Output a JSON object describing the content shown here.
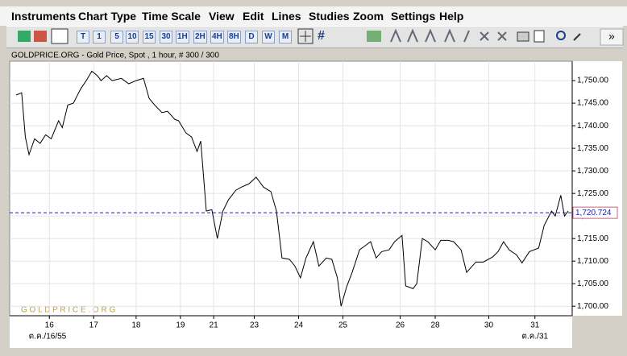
{
  "menu": [
    "Instruments",
    "Chart Type",
    "Time Scale",
    "View",
    "Edit",
    "Lines",
    "Studies",
    "Zoom",
    "Settings",
    "Help"
  ],
  "toolbar": {
    "periods": [
      "T",
      "1",
      "5",
      "10",
      "15",
      "30",
      "1H",
      "2H",
      "4H",
      "8H",
      "D",
      "W",
      "M"
    ]
  },
  "chart_data": {
    "type": "line",
    "title": "GOLDPRICE.ORG - Gold Price, Spot , 1 hour, # 300 / 300",
    "watermark": "G O L D P R I C E . O R G",
    "color": "#000000",
    "x": [
      0,
      3,
      5,
      7,
      10,
      13,
      16,
      19,
      23,
      25,
      28,
      31,
      35,
      38,
      41,
      44,
      46,
      49,
      52,
      57,
      61,
      65,
      69,
      72,
      75,
      79,
      82,
      86,
      88,
      92,
      95,
      98,
      100,
      103,
      106,
      109,
      112,
      115,
      119,
      122,
      126,
      130,
      134,
      138,
      141,
      144,
      148,
      151,
      154,
      157,
      161,
      164,
      168,
      171,
      174,
      176,
      179,
      182,
      186,
      189,
      192,
      195,
      198,
      202,
      205,
      209,
      211,
      215,
      217,
      220,
      223,
      227,
      230,
      234,
      237,
      241,
      244,
      249,
      253,
      258,
      261,
      264,
      267,
      271,
      274,
      278,
      283,
      286,
      290,
      292,
      295,
      297,
      299
    ],
    "values": [
      1746.8,
      1747.3,
      1737.5,
      1733.6,
      1737.1,
      1736.1,
      1738.0,
      1737.1,
      1741.1,
      1739.6,
      1744.6,
      1745.0,
      1748.2,
      1750,
      1752.1,
      1751.1,
      1750,
      1751.1,
      1750,
      1750.5,
      1749.3,
      1750,
      1750.5,
      1746.1,
      1744.6,
      1742.9,
      1743.2,
      1741.4,
      1741.1,
      1738.4,
      1737.5,
      1734.3,
      1736.6,
      1721.1,
      1721.4,
      1715.0,
      1721.1,
      1723.6,
      1725.7,
      1726.4,
      1727.1,
      1728.6,
      1726.4,
      1725.4,
      1721.1,
      1710.7,
      1710.4,
      1708.9,
      1706.3,
      1710.7,
      1714.3,
      1708.9,
      1710.7,
      1710.4,
      1706.3,
      1700,
      1704.3,
      1707.5,
      1712.5,
      1713.4,
      1714.3,
      1710.7,
      1712.1,
      1712.5,
      1714.3,
      1715.7,
      1704.5,
      1703.9,
      1705,
      1715,
      1714.3,
      1712.5,
      1714.6,
      1714.6,
      1714.3,
      1712.5,
      1707.5,
      1709.8,
      1709.8,
      1710.9,
      1712.1,
      1714.3,
      1712.5,
      1711.4,
      1709.6,
      1712.1,
      1712.9,
      1717.9,
      1721.1,
      1720,
      1724.6,
      1720,
      1721.1
    ],
    "xlim": [
      0,
      299
    ],
    "xticks": [
      {
        "value": 18,
        "label": "16"
      },
      {
        "value": 42,
        "label": "17"
      },
      {
        "value": 65,
        "label": "18"
      },
      {
        "value": 89,
        "label": "19"
      },
      {
        "value": 107,
        "label": "21"
      },
      {
        "value": 129,
        "label": "23"
      },
      {
        "value": 153,
        "label": "24"
      },
      {
        "value": 177,
        "label": "25"
      },
      {
        "value": 208,
        "label": "26"
      },
      {
        "value": 227,
        "label": "28"
      },
      {
        "value": 256,
        "label": "30"
      },
      {
        "value": 281,
        "label": "31"
      }
    ],
    "x_date_labels": [
      {
        "value": 17,
        "label": "ต.ค./16/55"
      },
      {
        "value": 281,
        "label": "ต.ค./31"
      }
    ],
    "ylim": [
      1697.9,
      1754.3
    ],
    "yticks": [
      {
        "value": 1700,
        "label": "1,700.00"
      },
      {
        "value": 1705,
        "label": "1,705.00"
      },
      {
        "value": 1710,
        "label": "1,710.00"
      },
      {
        "value": 1715,
        "label": "1,715.00"
      },
      {
        "value": 1720,
        "label": "1,720.00"
      },
      {
        "value": 1725,
        "label": "1,725.00"
      },
      {
        "value": 1730,
        "label": "1,730.00"
      },
      {
        "value": 1735,
        "label": "1,735.00"
      },
      {
        "value": 1740,
        "label": "1,740.00"
      },
      {
        "value": 1745,
        "label": "1,745.00"
      },
      {
        "value": 1750,
        "label": "1,750.00"
      }
    ],
    "last_price": {
      "value": 1720.724,
      "label": "1,720.724"
    },
    "grid": true
  }
}
